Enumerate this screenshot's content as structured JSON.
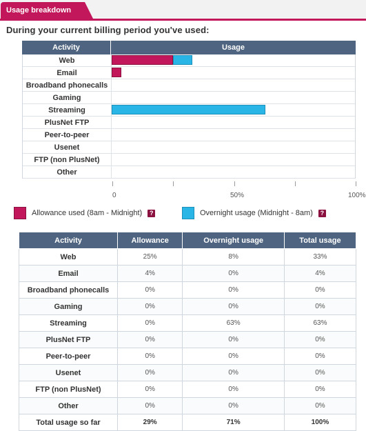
{
  "tab": {
    "title": "Usage breakdown"
  },
  "heading": "During your current billing period you've used:",
  "chart": {
    "header": {
      "activity": "Activity",
      "usage": "Usage"
    },
    "axis_labels": [
      "0",
      "50%",
      "100%"
    ]
  },
  "legend": {
    "allowance_label": "Allowance used (8am - Midnight)",
    "overnight_label": "Overnight usage (Midnight - 8am)",
    "help_glyph": "?"
  },
  "table": {
    "headers": [
      "Activity",
      "Allowance",
      "Overnight usage",
      "Total usage"
    ],
    "rows": [
      [
        "Web",
        "25%",
        "8%",
        "33%"
      ],
      [
        "Email",
        "4%",
        "0%",
        "4%"
      ],
      [
        "Broadband phonecalls",
        "0%",
        "0%",
        "0%"
      ],
      [
        "Gaming",
        "0%",
        "0%",
        "0%"
      ],
      [
        "Streaming",
        "0%",
        "63%",
        "63%"
      ],
      [
        "PlusNet FTP",
        "0%",
        "0%",
        "0%"
      ],
      [
        "Peer-to-peer",
        "0%",
        "0%",
        "0%"
      ],
      [
        "Usenet",
        "0%",
        "0%",
        "0%"
      ],
      [
        "FTP (non PlusNet)",
        "0%",
        "0%",
        "0%"
      ],
      [
        "Other",
        "0%",
        "0%",
        "0%"
      ],
      [
        "Total usage so far",
        "29%",
        "71%",
        "100%"
      ]
    ]
  },
  "chart_data": {
    "type": "bar",
    "orientation": "horizontal",
    "stacked": true,
    "categories": [
      "Web",
      "Email",
      "Broadband phonecalls",
      "Gaming",
      "Streaming",
      "PlusNet FTP",
      "Peer-to-peer",
      "Usenet",
      "FTP (non PlusNet)",
      "Other"
    ],
    "series": [
      {
        "name": "Allowance used (8am - Midnight)",
        "color": "#c2185b",
        "values": [
          25,
          4,
          0,
          0,
          0,
          0,
          0,
          0,
          0,
          0
        ]
      },
      {
        "name": "Overnight usage (Midnight - 8am)",
        "color": "#29b6e6",
        "values": [
          8,
          0,
          0,
          0,
          63,
          0,
          0,
          0,
          0,
          0
        ]
      }
    ],
    "xlim": [
      0,
      100
    ],
    "xticks": [
      0,
      50,
      100
    ],
    "title": "",
    "xlabel": "",
    "ylabel": ""
  },
  "colors": {
    "accent": "#c2185b",
    "overnight": "#29b6e6",
    "header_bg": "#4f6480"
  }
}
